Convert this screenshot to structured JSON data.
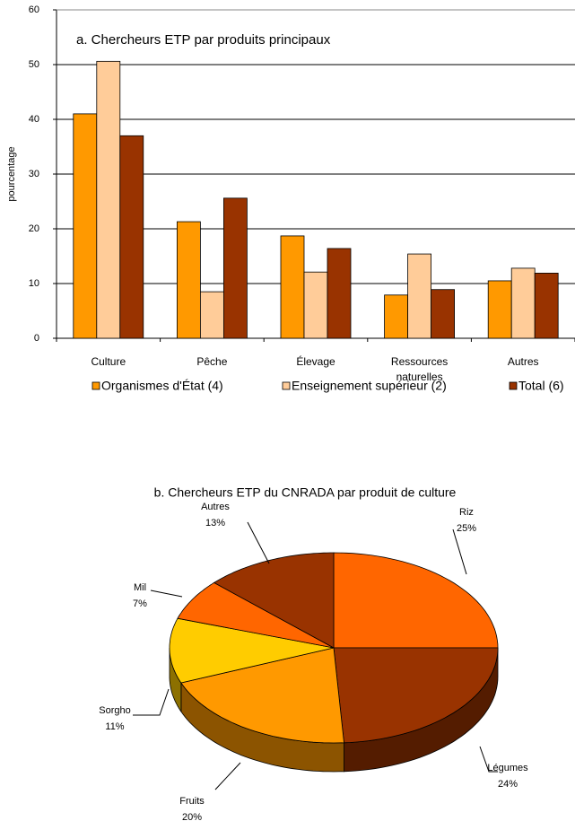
{
  "chart_data": [
    {
      "type": "bar",
      "title": "a. Chercheurs ETP par produits principaux",
      "y_label": "pourcentage",
      "categories": [
        "Culture",
        "Pêche",
        "Élevage",
        "Ressources naturelles",
        "Autres"
      ],
      "series": [
        {
          "name": "Organismes d'État (4)",
          "color": "#ff9900",
          "values": [
            41,
            21.3,
            18.7,
            7.9,
            10.5
          ]
        },
        {
          "name": "Enseignement supérieur (2)",
          "color": "#ffcc99",
          "values": [
            50.6,
            8.5,
            12.1,
            15.4,
            12.8
          ]
        },
        {
          "name": "Total (6)",
          "color": "#993300",
          "values": [
            37,
            25.6,
            16.4,
            8.9,
            11.9
          ]
        }
      ],
      "ylim": [
        0,
        60
      ],
      "yticks": [
        0,
        10,
        20,
        30,
        40,
        50,
        60
      ],
      "grid": true,
      "legend": "bottom"
    },
    {
      "type": "pie",
      "title": "b. Chercheurs ETP du CNRADA par produit de culture",
      "categories": [
        "Riz",
        "Légumes",
        "Fruits",
        "Sorgho",
        "Mil",
        "Autres"
      ],
      "values": [
        25,
        24,
        20,
        11,
        7,
        13
      ],
      "value_labels": [
        "25%",
        "24%",
        "20%",
        "11%",
        "7%",
        "13%"
      ],
      "colors": [
        "#ff6600",
        "#993300",
        "#ff9900",
        "#ffcc00",
        "#ff6600",
        "#993300"
      ]
    }
  ]
}
